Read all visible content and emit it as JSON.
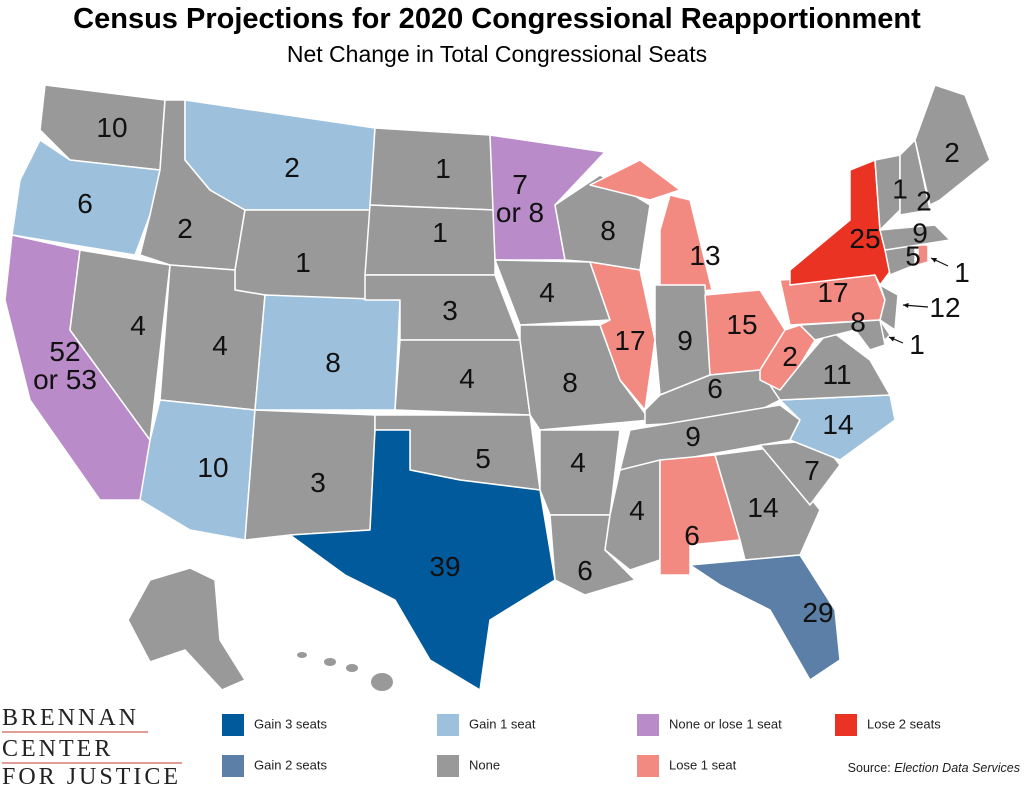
{
  "header": {
    "title": "Census Projections for 2020 Congressional Reapportionment",
    "subtitle": "Net Change in Total Congressional Seats"
  },
  "legend": [
    {
      "label": "Gain 3 seats",
      "color": "#005a9c"
    },
    {
      "label": "Gain 1 seat",
      "color": "#9dc0dc"
    },
    {
      "label": "None or lose 1 seat",
      "color": "#b98bc9"
    },
    {
      "label": "Lose 2 seats",
      "color": "#ea3323"
    },
    {
      "label": "Gain 2 seats",
      "color": "#5b7fa6"
    },
    {
      "label": "None",
      "color": "#999999"
    },
    {
      "label": "Lose 1 seat",
      "color": "#f28a82"
    }
  ],
  "source": {
    "label": "Source:",
    "name": "Election Data Services"
  },
  "logo": {
    "lines": [
      "BRENNAN",
      "CENTER",
      "FOR JUSTICE"
    ]
  },
  "states": [
    {
      "label": [
        10
      ],
      "color": "#999999"
    },
    {
      "label": [
        6
      ],
      "color": "#9dc0dc"
    },
    {
      "label": [
        "52",
        "or 53"
      ],
      "color": "#b98bc9"
    },
    {
      "label": [
        4
      ],
      "color": "#999999"
    },
    {
      "label": [
        2
      ],
      "color": "#999999"
    },
    {
      "label": [
        2
      ],
      "color": "#9dc0dc"
    },
    {
      "label": [
        1
      ],
      "color": "#999999"
    },
    {
      "label": [
        4
      ],
      "color": "#999999"
    },
    {
      "label": [
        8
      ],
      "color": "#9dc0dc"
    },
    {
      "label": [
        10
      ],
      "color": "#9dc0dc"
    },
    {
      "label": [
        3
      ],
      "color": "#999999"
    },
    {
      "label": [
        1
      ],
      "color": "#999999"
    },
    {
      "label": [
        1
      ],
      "color": "#999999"
    },
    {
      "label": [
        3
      ],
      "color": "#999999"
    },
    {
      "label": [
        4
      ],
      "color": "#999999"
    },
    {
      "label": [
        5
      ],
      "color": "#999999"
    },
    {
      "label": [
        39
      ],
      "color": "#005a9c"
    },
    {
      "label": [
        "7",
        "or 8"
      ],
      "color": "#b98bc9"
    },
    {
      "label": [
        4
      ],
      "color": "#999999"
    },
    {
      "label": [
        8
      ],
      "color": "#999999"
    },
    {
      "label": [
        4
      ],
      "color": "#999999"
    },
    {
      "label": [
        6
      ],
      "color": "#999999"
    },
    {
      "label": [
        8
      ],
      "color": "#999999"
    },
    {
      "label": [
        17
      ],
      "color": "#f28a82"
    },
    {
      "label": [
        13
      ],
      "color": "#f28a82"
    },
    {
      "label": [
        9
      ],
      "color": "#999999"
    },
    {
      "label": [
        15
      ],
      "color": "#f28a82"
    },
    {
      "label": [
        6
      ],
      "color": "#999999"
    },
    {
      "label": [
        9
      ],
      "color": "#999999"
    },
    {
      "label": [
        4
      ],
      "color": "#999999"
    },
    {
      "label": [
        6
      ],
      "color": "#f28a82"
    },
    {
      "label": [
        14
      ],
      "color": "#999999"
    },
    {
      "label": [
        29
      ],
      "color": "#5b7fa6"
    },
    {
      "label": [
        7
      ],
      "color": "#999999"
    },
    {
      "label": [
        14
      ],
      "color": "#9dc0dc"
    },
    {
      "label": [
        11
      ],
      "color": "#999999"
    },
    {
      "label": [
        2
      ],
      "color": "#f28a82"
    },
    {
      "label": [
        17
      ],
      "color": "#f28a82"
    },
    {
      "label": [
        25
      ],
      "color": "#ea3323"
    },
    {
      "label": [
        12
      ],
      "color": "#999999"
    },
    {
      "label": [
        1
      ],
      "color": "#999999"
    },
    {
      "label": [
        8
      ],
      "color": "#999999"
    },
    {
      "label": [
        5
      ],
      "color": "#999999"
    },
    {
      "label": [
        1
      ],
      "color": "#f28a82"
    },
    {
      "label": [
        9
      ],
      "color": "#999999"
    },
    {
      "label": [
        1
      ],
      "color": "#999999"
    },
    {
      "label": [
        2
      ],
      "color": "#999999"
    },
    {
      "label": [
        2
      ],
      "color": "#999999"
    }
  ]
}
